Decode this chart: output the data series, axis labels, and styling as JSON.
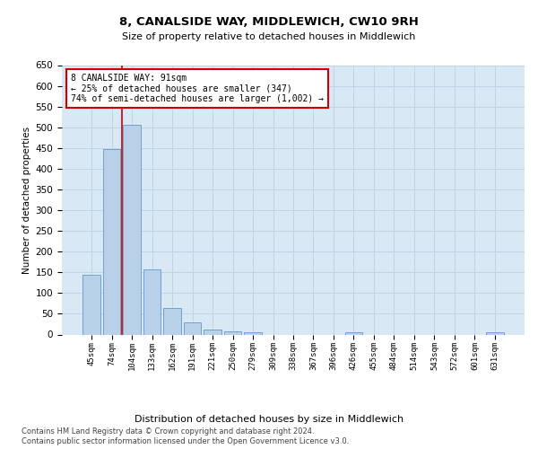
{
  "title": "8, CANALSIDE WAY, MIDDLEWICH, CW10 9RH",
  "subtitle": "Size of property relative to detached houses in Middlewich",
  "xlabel": "Distribution of detached houses by size in Middlewich",
  "ylabel": "Number of detached properties",
  "categories": [
    "45sqm",
    "74sqm",
    "104sqm",
    "133sqm",
    "162sqm",
    "191sqm",
    "221sqm",
    "250sqm",
    "279sqm",
    "309sqm",
    "338sqm",
    "367sqm",
    "396sqm",
    "426sqm",
    "455sqm",
    "484sqm",
    "514sqm",
    "543sqm",
    "572sqm",
    "601sqm",
    "631sqm"
  ],
  "values": [
    145,
    448,
    505,
    157,
    65,
    30,
    13,
    8,
    5,
    0,
    0,
    0,
    0,
    5,
    0,
    0,
    0,
    0,
    0,
    0,
    5
  ],
  "bar_color": "#b8d0e8",
  "bar_edge_color": "#6699cc",
  "vline_x": 1.5,
  "vline_color": "#cc0000",
  "annotation_text": "8 CANALSIDE WAY: 91sqm\n← 25% of detached houses are smaller (347)\n74% of semi-detached houses are larger (1,002) →",
  "annotation_box_color": "#ffffff",
  "annotation_box_edge": "#cc0000",
  "ylim": [
    0,
    650
  ],
  "yticks": [
    0,
    50,
    100,
    150,
    200,
    250,
    300,
    350,
    400,
    450,
    500,
    550,
    600,
    650
  ],
  "grid_color": "#c0d4e8",
  "bg_color": "#d8e8f4",
  "footer1": "Contains HM Land Registry data © Crown copyright and database right 2024.",
  "footer2": "Contains public sector information licensed under the Open Government Licence v3.0."
}
